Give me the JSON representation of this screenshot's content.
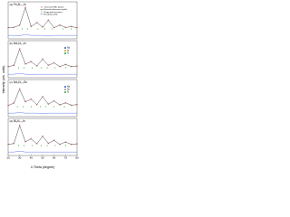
{
  "figure": {
    "ylabel": "Intensity (arb. units)",
    "xlabel": "2-Theta (degree)"
  },
  "chart_data": [
    {
      "type": "line",
      "label": "(a)",
      "title": "Fe₃N₀.₅In",
      "x": [
        20,
        25,
        30,
        35,
        40,
        45,
        50,
        55,
        60,
        65,
        70,
        75,
        80
      ],
      "series": [
        {
          "name": "Observed XRD pattern",
          "color": "#e02020",
          "values": [
            1,
            1.2,
            2,
            9,
            1.5,
            3,
            1.2,
            4,
            1,
            2,
            1.1,
            1.5,
            1
          ]
        },
        {
          "name": "Rietveld refinement profile",
          "color": "#000000",
          "values": [
            1,
            1.1,
            2,
            8.8,
            1.4,
            3,
            1.2,
            3.9,
            1,
            2,
            1.1,
            1.4,
            1
          ]
        },
        {
          "name": "Residual profile",
          "color": "#2040e0",
          "values": [
            -2,
            -2,
            -2.2,
            -1.6,
            -2,
            -2,
            -2,
            -2.1,
            -2,
            -2,
            -2,
            -2,
            -2
          ]
        }
      ],
      "bragg": {
        "name": "Bragg peak positions",
        "color": "#10a010",
        "x": [
          32,
          37,
          46,
          52,
          58,
          68,
          75
        ]
      },
      "xlim": [
        20,
        80
      ],
      "ylim": [
        -3,
        10
      ]
    },
    {
      "type": "line",
      "label": "(b)",
      "title": "Nd₃N₀.₅In",
      "x": [
        20,
        25,
        30,
        35,
        40,
        45,
        50,
        55,
        60,
        65,
        70,
        75,
        80
      ],
      "series": [
        {
          "name": "Observed XRD pattern",
          "color": "#e02020",
          "values": [
            1,
            1.5,
            8,
            2,
            3,
            1.2,
            4,
            1.5,
            2.5,
            1,
            1.8,
            1,
            1.2
          ]
        },
        {
          "name": "Rietveld refinement profile",
          "color": "#000000",
          "values": [
            1,
            1.4,
            7.8,
            2,
            2.9,
            1.2,
            3.9,
            1.5,
            2.4,
            1,
            1.8,
            1,
            1.2
          ]
        },
        {
          "name": "Residual profile",
          "color": "#2040e0",
          "values": [
            -2,
            -2,
            -1.7,
            -2,
            -2.1,
            -2,
            -2,
            -2,
            -2,
            -2,
            -2,
            -2,
            -2
          ]
        }
      ],
      "bragg": {
        "name": "Bragg peak positions",
        "color": "#10a010",
        "x": [
          29,
          34,
          41,
          49,
          54,
          61,
          70
        ]
      },
      "inset_legend": [
        {
          "name": "Nd",
          "color": "#3060d0"
        },
        {
          "name": "In",
          "color": "#d0a020"
        },
        {
          "name": "N",
          "color": "#30a030"
        }
      ],
      "xlim": [
        20,
        80
      ],
      "ylim": [
        -3,
        10
      ]
    },
    {
      "type": "line",
      "label": "(c)",
      "title": "Nd₃N₀.₅Sn",
      "x": [
        20,
        25,
        30,
        35,
        40,
        45,
        50,
        55,
        60,
        65,
        70,
        75,
        80
      ],
      "series": [
        {
          "name": "Observed XRD pattern",
          "color": "#e02020",
          "values": [
            1,
            2,
            7.5,
            2.5,
            3.5,
            1.3,
            4.5,
            1.5,
            2.8,
            1.2,
            2,
            1.1,
            1.3
          ]
        },
        {
          "name": "Rietveld refinement profile",
          "color": "#000000",
          "values": [
            1,
            1.9,
            7.3,
            2.4,
            3.4,
            1.3,
            4.4,
            1.5,
            2.7,
            1.2,
            2,
            1.1,
            1.3
          ]
        },
        {
          "name": "Residual profile",
          "color": "#2040e0",
          "values": [
            -2,
            -2,
            -1.8,
            -2,
            -2,
            -2,
            -2.1,
            -2,
            -2,
            -2,
            -2,
            -2,
            -2
          ]
        }
      ],
      "bragg": {
        "name": "Bragg peak positions",
        "color": "#10a010",
        "x": [
          28,
          33,
          40,
          48,
          53,
          60,
          69
        ]
      },
      "inset_legend": [
        {
          "name": "Nd",
          "color": "#3060d0"
        },
        {
          "name": "Sn",
          "color": "#909090"
        },
        {
          "name": "N",
          "color": "#30a030"
        }
      ],
      "xlim": [
        20,
        80
      ],
      "ylim": [
        -3,
        10
      ]
    },
    {
      "type": "line",
      "label": "(d)",
      "title": "Bi₃N₀.₅In",
      "x": [
        20,
        25,
        30,
        35,
        40,
        45,
        50,
        55,
        60,
        65,
        70,
        75,
        80
      ],
      "series": [
        {
          "name": "Observed XRD pattern",
          "color": "#e02020",
          "values": [
            1,
            1.3,
            8.5,
            2,
            3.2,
            1.2,
            4.2,
            1.4,
            2.6,
            1,
            1.9,
            1,
            1.2
          ]
        },
        {
          "name": "Rietveld refinement profile",
          "color": "#000000",
          "values": [
            1,
            1.3,
            8.3,
            2,
            3.1,
            1.2,
            4.1,
            1.4,
            2.5,
            1,
            1.9,
            1,
            1.2
          ]
        },
        {
          "name": "Residual profile",
          "color": "#2040e0",
          "values": [
            -2,
            -2,
            -1.7,
            -2,
            -2,
            -2,
            -2,
            -2,
            -2,
            -2,
            -2,
            -2,
            -2
          ]
        }
      ],
      "bragg": {
        "name": "Bragg peak positions",
        "color": "#10a010",
        "x": [
          29,
          34,
          41,
          49,
          54,
          61,
          70
        ]
      },
      "xlim": [
        20,
        80
      ],
      "ylim": [
        -3,
        10
      ],
      "xticks": [
        20,
        30,
        40,
        50,
        60,
        70,
        80
      ]
    }
  ]
}
